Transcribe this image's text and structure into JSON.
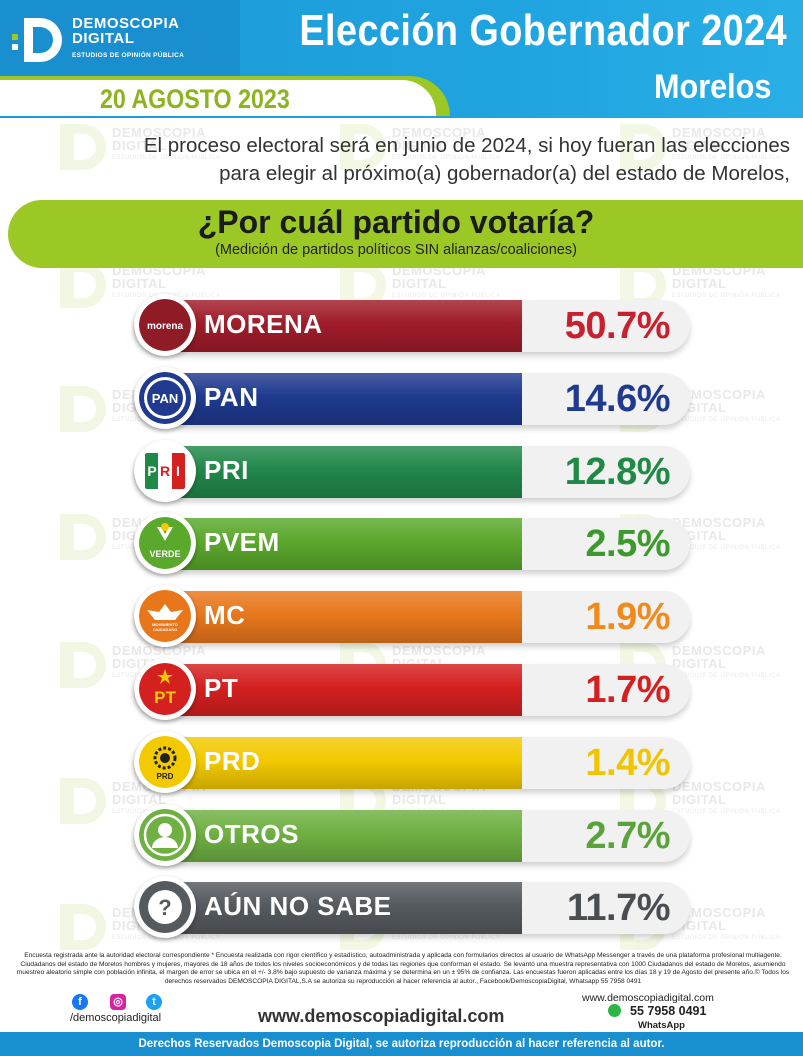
{
  "brand": {
    "name_line1": "DEMOSCOPIA",
    "name_line2": "DIGITAL",
    "tagline": "ESTUDIOS DE OPINIÓN PÚBLICA",
    "watermark_line1": "DEMOSCOPIA",
    "watermark_line2": "DIGITAL",
    "watermark_line3": "ESTUDIOS DE OPINIÓN PÚBLICA"
  },
  "header": {
    "title": "Elección Gobernador 2024",
    "subtitle": "Morelos",
    "date": "20 AGOSTO 2023"
  },
  "intro": {
    "line1": "El proceso electoral será en junio de 2024, si hoy fueran las elecciones",
    "line2": "para elegir al próximo(a) gobernador(a) del estado de Morelos,"
  },
  "question": {
    "text": "¿Por cuál partido votaría?",
    "note": "(Medición de partidos políticos SIN alianzas/coaliciones)"
  },
  "chart_data": {
    "type": "bar",
    "title": "¿Por cuál partido votaría?",
    "subtitle": "(Medición de partidos políticos SIN alianzas/coaliciones)",
    "categories": [
      "MORENA",
      "PAN",
      "PRI",
      "PVEM",
      "MC",
      "PT",
      "PRD",
      "OTROS",
      "AÚN NO SABE"
    ],
    "values": [
      50.7,
      14.6,
      12.8,
      2.5,
      1.9,
      1.7,
      1.4,
      2.7,
      11.7
    ],
    "labels": [
      "50.7%",
      "14.6%",
      "12.8%",
      "2.5%",
      "1.9%",
      "1.7%",
      "1.4%",
      "2.7%",
      "11.7%"
    ],
    "bar_colors": [
      "#a01c2a",
      "#1f3a8f",
      "#21884a",
      "#5aa82c",
      "#e8771c",
      "#d4201f",
      "#f3c900",
      "#6fb042",
      "#555a5f"
    ],
    "label_colors": [
      "#c8202e",
      "#1f3a8f",
      "#1e8a45",
      "#3c9a2c",
      "#f08a1c",
      "#d4201f",
      "#f0c400",
      "#5aa33a",
      "#4a4d52"
    ],
    "badge_icons": [
      "morena-logo",
      "pan-logo",
      "pri-logo",
      "pvem-logo",
      "mc-logo",
      "pt-logo",
      "prd-logo",
      "person-icon",
      "question-icon"
    ],
    "badge_text": [
      "morena",
      "PAN",
      "PRI",
      "VERDE",
      "MOVIMIENTO CIUDADANO",
      "PT",
      "PRD",
      "",
      "?"
    ]
  },
  "footer": {
    "methodology": "Encuesta registrada ante la autoridad electoral correspondiente * Encuesta realizada con rigor científico y estadístico, autoadministrada y aplicada con formularios directos al usuario de WhatsApp Messenger a través de una plataforma profesional multiagente. Ciudadanos del estado de Morelos hombres y mujeres, mayores de 18 años de todos los niveles socioeconómicos y de todas las regiones que conforman el estado. Se levantó una muestra representativa con 1000 Ciudadanos del estado de Morelos, asumiendo muestreo aleatorio simple con población infinita, el margen de error se ubica en el +/- 3.8% bajo supuesto de varianza máxima y se determina en un ± 95% de confianza. Las encuestas fueron aplicadas entre los días 18 y 19 de Agosto del presente año.© Todos los derechos reservados DEMOSCOPIA DIGITAL,S.A se autoriza su reproducción al hacer referencia al autor., Facebook/DemoscopiaDigital, Whatsapp 55 7958 0491",
    "handle": "/demoscopiadigital",
    "website": "www.demoscopiadigital.com",
    "website_small": "www.demoscopiadigital.com",
    "phone": "55 7958 0491",
    "whatsapp_label": "WhatsApp",
    "rights": "Derechos Reservados Demoscopia Digital, se autoriza reproducción al hacer referencia al autor.",
    "social_icons": [
      "facebook-icon",
      "instagram-icon",
      "twitter-icon"
    ]
  }
}
